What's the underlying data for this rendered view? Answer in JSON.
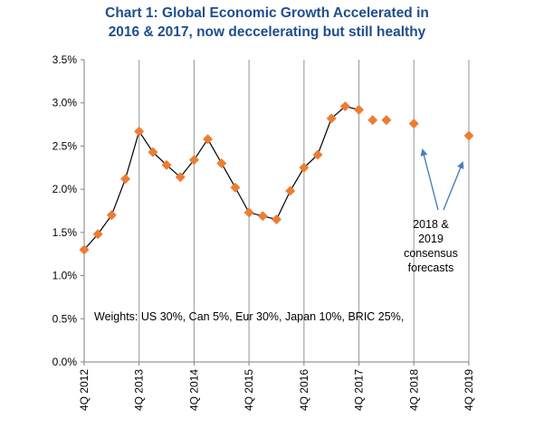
{
  "chart_data": {
    "type": "line",
    "title_lines": [
      "Chart 1: Global Economic Growth Accelerated in",
      "2016 & 2017, now deccelerating but still healthy"
    ],
    "y_ticks": [
      "0.0%",
      "0.5%",
      "1.0%",
      "1.5%",
      "2.0%",
      "2.5%",
      "3.0%",
      "3.5%"
    ],
    "ylim": [
      0,
      3.5
    ],
    "x_ticks": [
      "4Q 2012",
      "4Q 2013",
      "4Q 2014",
      "4Q 2015",
      "4Q 2016",
      "4Q 2017",
      "4Q 2018",
      "4Q 2019"
    ],
    "grid": "vertical lines at each labeled year",
    "series": [
      {
        "values": [
          1.3,
          1.48,
          1.7,
          2.12,
          2.67,
          2.43,
          2.28,
          2.14,
          2.34,
          2.58,
          2.3,
          2.02,
          1.73,
          1.69,
          1.65,
          1.98,
          2.25,
          2.4,
          2.82,
          2.96,
          2.92,
          2.8,
          2.8
        ],
        "connected_points": 21
      }
    ],
    "forecast_points": [
      {
        "x_index": 24,
        "value": 2.76
      },
      {
        "x_index": 28,
        "value": 2.62
      }
    ],
    "weights_note": "Weights: US 30%, Can 5%, Eur 30%, Japan 10%, BRIC 25%,",
    "forecast_annotation": [
      "2018 &",
      "2019",
      "consensus",
      "forecasts"
    ],
    "colors": {
      "marker": "#ed7d31",
      "line": "#000000",
      "title": "#1f4e8c",
      "arrow": "#4a7ebb",
      "grid": "#a6a6a6"
    }
  }
}
